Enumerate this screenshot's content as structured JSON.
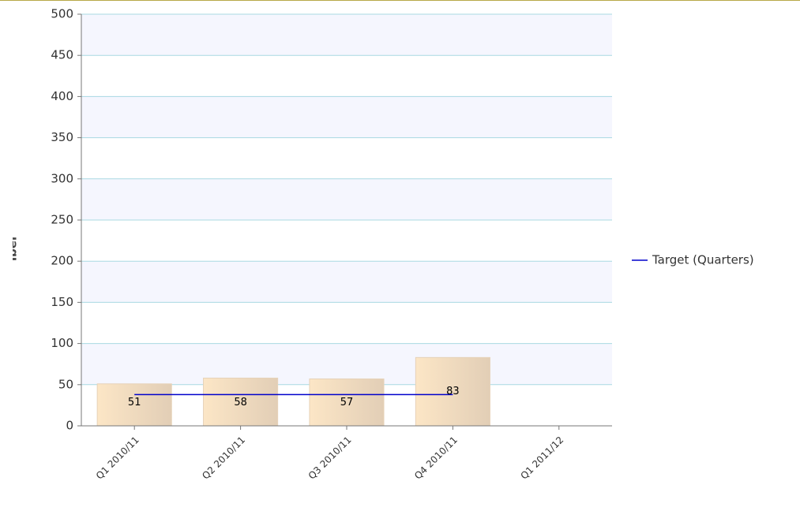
{
  "chart_data": {
    "type": "bar",
    "y_label": "venting Homelessness - number of households where ho",
    "categories": [
      "Q1 2010/11",
      "Q2 2010/11",
      "Q3 2010/11",
      "Q4 2010/11",
      "Q1 2011/12"
    ],
    "values": [
      51,
      58,
      57,
      83,
      null
    ],
    "color": "#f3dcc0",
    "series": [
      {
        "name": "Target (Quarters)",
        "color": "#0000cc",
        "values": [
          38,
          38,
          38,
          38,
          null
        ]
      }
    ],
    "ylim": [
      0,
      500
    ],
    "yticks": [
      0,
      50,
      100,
      150,
      200,
      250,
      300,
      350,
      400,
      450,
      500
    ],
    "grid": true,
    "legend": "right"
  }
}
